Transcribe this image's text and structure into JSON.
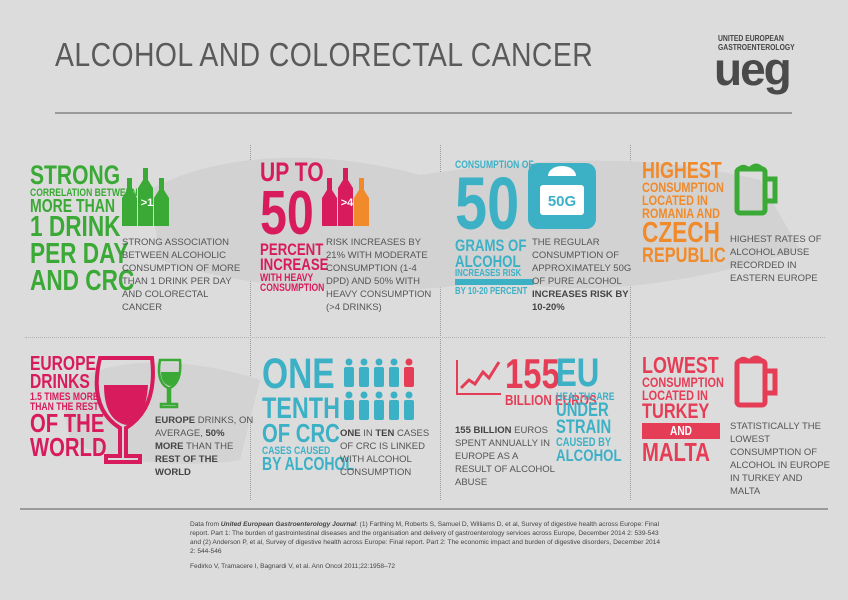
{
  "header": {
    "title": "ALCOHOL AND COLORECTAL CANCER",
    "logo_org": [
      "UNITED EUROPEAN",
      "GASTROENTEROLOGY"
    ],
    "logo_mark": "ueg"
  },
  "panels": [
    {
      "headline": [
        "STRONG",
        "CORRELATION BETWEEN",
        "MORE THAN",
        "1 DRINK",
        "PER DAY",
        "AND CRC"
      ],
      "icon_label": ">1",
      "body": [
        "STRONG ASSOCIATION BETWEEN ALCOHOLIC CONSUMPTION OF MORE THAN 1 DRINK PER DAY AND COLORECTAL CANCER"
      ]
    },
    {
      "headline": [
        "UP TO",
        "50",
        "PERCENT",
        "INCREASE",
        "WITH HEAVY",
        "CONSUMPTION"
      ],
      "icon_label": ">4",
      "body": [
        "RISK INCREASES BY 21% WITH MODERATE CONSUMPTION (1-4 DPD) AND 50% WITH HEAVY CONSUMPTION (>4 DRINKS)"
      ]
    },
    {
      "headline": [
        "CONSUMPTION OF",
        "50",
        "GRAMS OF",
        "ALCOHOL",
        "INCREASES RISK",
        "BY 10-20 PERCENT"
      ],
      "icon_label": "50G",
      "body": [
        "THE REGULAR CONSUMPTION OF APPROXIMATELY 50G OF PURE ALCOHOL",
        "INCREASES RISK BY 10-20%"
      ]
    },
    {
      "headline": [
        "HIGHEST",
        "CONSUMPTION",
        "LOCATED IN",
        "ROMANIA AND",
        "CZECH",
        "REPUBLIC"
      ],
      "body": [
        "HIGHEST RATES OF ALCOHOL ABUSE RECORDED IN EASTERN EUROPE"
      ]
    },
    {
      "headline": [
        "EUROPE",
        "DRINKS",
        "1.5 TIMES MORE",
        "THAN THE REST",
        "OF THE",
        "WORLD"
      ],
      "body": [
        "EUROPE",
        "DRINKS, ON AVERAGE,",
        "50% MORE",
        "THAN THE",
        "REST OF THE WORLD"
      ]
    },
    {
      "headline": [
        "ONE",
        "TENTH",
        "OF CRC",
        "CASES CAUSED",
        "BY ALCOHOL"
      ],
      "body": [
        "ONE",
        "IN",
        "TEN",
        "CASES OF CRC IS LINKED WITH ALCOHOL CONSUMPTION"
      ]
    },
    {
      "headline": [
        "155",
        "BILLION EUROS"
      ],
      "side_headline": [
        "EU",
        "HEALTHCARE",
        "UNDER",
        "STRAIN",
        "CAUSED BY",
        "ALCOHOL"
      ],
      "body": [
        "155 BILLION",
        "EUROS SPENT ANNUALLY IN EUROPE AS A RESULT OF ALCOHOL ABUSE"
      ]
    },
    {
      "headline": [
        "LOWEST",
        "CONSUMPTION",
        "LOCATED IN",
        "TURKEY",
        "AND",
        "MALTA"
      ],
      "body": [
        "STATISTICALLY THE LOWEST CONSUMPTION OF ALCOHOL IN EUROPE IN TURKEY AND MALTA"
      ]
    }
  ],
  "footer": {
    "source_intro": "Data from",
    "journal": "United European Gastroenterology Journal",
    "source_refs": ": (1) Farthing M, Roberts S, Samuel D, Williams D, et al, Survey of digestive health across Europe: Final report. Part 1: The burden of gastrointestinal diseases and the organisation and delivery of gastroenterology services across Europe, December 2014 2: 539-543 and (2) Anderson P, et al, Survey of digestive health across Europe: Final report. Part 2: The economic impact and burden of digestive disorders, December 2014 2: 544-546",
    "second_source": "Fedirko V, Tramacere I, Bagnardi V, et al. Ann Oncol 2011;22:1958–72"
  }
}
